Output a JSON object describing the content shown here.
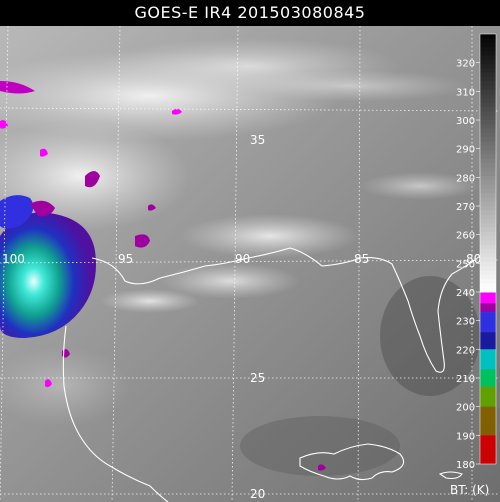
{
  "title": "GOES-E IR4 201503080845",
  "grid_labels": {
    "lat": [
      "35",
      "25",
      "20"
    ],
    "lon": [
      "100",
      "95",
      "90",
      "85",
      "80"
    ]
  },
  "colorbar": {
    "unit_label": "BT: (K)",
    "ticks": [
      "320",
      "310",
      "300",
      "290",
      "280",
      "270",
      "260",
      "250",
      "240",
      "230",
      "220",
      "210",
      "200",
      "190",
      "180"
    ],
    "color_segments": [
      {
        "range": [
          180,
          190
        ],
        "color": "#cc0000"
      },
      {
        "range": [
          190,
          200
        ],
        "color": "#806000"
      },
      {
        "range": [
          200,
          207
        ],
        "color": "#60a000"
      },
      {
        "range": [
          207,
          213
        ],
        "color": "#00c060"
      },
      {
        "range": [
          213,
          220
        ],
        "color": "#00c0c0"
      },
      {
        "range": [
          220,
          226
        ],
        "color": "#1a1aa0"
      },
      {
        "range": [
          226,
          233
        ],
        "color": "#3030e0"
      },
      {
        "range": [
          233,
          236
        ],
        "color": "#a000a0"
      },
      {
        "range": [
          236,
          240
        ],
        "color": "#ff00ff"
      }
    ],
    "grayscale_range": [
      240,
      330
    ]
  },
  "colors": {
    "grid": "#ffffff",
    "coastline": "#ffffff",
    "label": "#ffffff"
  }
}
